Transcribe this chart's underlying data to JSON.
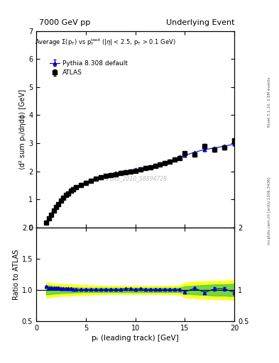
{
  "title_left": "7000 GeV pp",
  "title_right": "Underlying Event",
  "annotation": "Average Σ(pₜ) vs pₜᵉᵃᵈ (|η| < 2.5, pₜ > 0.1 GeV)",
  "watermark": "ATLAS_2010_S8894728",
  "ylabel_main": "⟨d² sum pₜ/dηdϕ⟩ [GeV]",
  "ylabel_ratio": "Ratio to ATLAS",
  "xlabel": "pₜ (leading track) [GeV]",
  "right_label": "mcplots.cern.ch [arXiv:1306.3436]",
  "right_label2": "Rivet 3.1.10, 3.5M events",
  "ylim_main": [
    0,
    7
  ],
  "ylim_ratio": [
    0.5,
    2.0
  ],
  "xlim": [
    0,
    20
  ],
  "legend_atlas": "ATLAS",
  "legend_pythia": "Pythia 8.308 default",
  "atlas_x": [
    1.0,
    1.25,
    1.5,
    1.75,
    2.0,
    2.25,
    2.5,
    2.75,
    3.0,
    3.25,
    3.5,
    3.75,
    4.0,
    4.5,
    5.0,
    5.5,
    6.0,
    6.5,
    7.0,
    7.5,
    8.0,
    8.5,
    9.0,
    9.5,
    10.0,
    10.5,
    11.0,
    11.5,
    12.0,
    12.5,
    13.0,
    13.5,
    14.0,
    14.5,
    15.0,
    16.0,
    17.0,
    18.0,
    19.0,
    20.0
  ],
  "atlas_y": [
    0.18,
    0.32,
    0.46,
    0.6,
    0.72,
    0.84,
    0.96,
    1.06,
    1.15,
    1.22,
    1.3,
    1.36,
    1.43,
    1.52,
    1.6,
    1.67,
    1.73,
    1.78,
    1.83,
    1.87,
    1.9,
    1.94,
    1.97,
    2.0,
    2.03,
    2.07,
    2.11,
    2.15,
    2.19,
    2.24,
    2.29,
    2.35,
    2.41,
    2.48,
    2.64,
    2.6,
    2.9,
    2.78,
    2.85,
    3.1
  ],
  "atlas_yerr": [
    0.01,
    0.01,
    0.01,
    0.01,
    0.01,
    0.01,
    0.01,
    0.01,
    0.01,
    0.01,
    0.01,
    0.01,
    0.01,
    0.01,
    0.01,
    0.01,
    0.01,
    0.01,
    0.01,
    0.01,
    0.01,
    0.01,
    0.01,
    0.01,
    0.01,
    0.01,
    0.01,
    0.01,
    0.01,
    0.01,
    0.02,
    0.02,
    0.02,
    0.02,
    0.05,
    0.05,
    0.07,
    0.07,
    0.07,
    0.07
  ],
  "pythia_x": [
    1.0,
    1.25,
    1.5,
    1.75,
    2.0,
    2.25,
    2.5,
    2.75,
    3.0,
    3.25,
    3.5,
    3.75,
    4.0,
    4.5,
    5.0,
    5.5,
    6.0,
    6.5,
    7.0,
    7.5,
    8.0,
    8.5,
    9.0,
    9.5,
    10.0,
    10.5,
    11.0,
    11.5,
    12.0,
    12.5,
    13.0,
    13.5,
    14.0,
    14.5,
    15.0,
    16.0,
    17.0,
    18.0,
    19.0,
    20.0
  ],
  "pythia_y": [
    0.19,
    0.33,
    0.48,
    0.62,
    0.74,
    0.87,
    0.98,
    1.08,
    1.17,
    1.24,
    1.32,
    1.38,
    1.44,
    1.54,
    1.62,
    1.69,
    1.75,
    1.8,
    1.85,
    1.89,
    1.93,
    1.96,
    2.0,
    2.03,
    2.06,
    2.1,
    2.14,
    2.18,
    2.22,
    2.27,
    2.32,
    2.38,
    2.44,
    2.51,
    2.57,
    2.68,
    2.78,
    2.83,
    2.9,
    2.97
  ],
  "pythia_yerr": [
    0.003,
    0.003,
    0.003,
    0.003,
    0.003,
    0.003,
    0.003,
    0.003,
    0.003,
    0.003,
    0.003,
    0.003,
    0.003,
    0.003,
    0.003,
    0.003,
    0.003,
    0.003,
    0.003,
    0.003,
    0.003,
    0.003,
    0.003,
    0.003,
    0.003,
    0.003,
    0.003,
    0.003,
    0.003,
    0.003,
    0.003,
    0.003,
    0.003,
    0.003,
    0.003,
    0.003,
    0.003,
    0.003,
    0.003,
    0.003
  ],
  "ratio_x": [
    1.0,
    1.25,
    1.5,
    1.75,
    2.0,
    2.25,
    2.5,
    2.75,
    3.0,
    3.25,
    3.5,
    3.75,
    4.0,
    4.5,
    5.0,
    5.5,
    6.0,
    6.5,
    7.0,
    7.5,
    8.0,
    8.5,
    9.0,
    9.5,
    10.0,
    10.5,
    11.0,
    11.5,
    12.0,
    12.5,
    13.0,
    13.5,
    14.0,
    14.5,
    15.0,
    16.0,
    17.0,
    18.0,
    19.0,
    20.0
  ],
  "ratio_y": [
    1.06,
    1.03,
    1.04,
    1.03,
    1.03,
    1.04,
    1.02,
    1.02,
    1.02,
    1.02,
    1.02,
    1.01,
    1.01,
    1.01,
    1.01,
    1.01,
    1.01,
    1.01,
    1.01,
    1.01,
    1.01,
    1.01,
    1.02,
    1.02,
    1.01,
    1.02,
    1.01,
    1.01,
    1.01,
    1.01,
    1.01,
    1.01,
    1.01,
    1.01,
    0.97,
    1.03,
    0.96,
    1.02,
    1.02,
    0.96
  ],
  "ratio_yerr": [
    0.008,
    0.007,
    0.006,
    0.005,
    0.005,
    0.005,
    0.005,
    0.005,
    0.005,
    0.005,
    0.005,
    0.005,
    0.005,
    0.005,
    0.005,
    0.005,
    0.005,
    0.005,
    0.005,
    0.005,
    0.005,
    0.005,
    0.005,
    0.005,
    0.005,
    0.005,
    0.005,
    0.005,
    0.005,
    0.005,
    0.005,
    0.005,
    0.005,
    0.005,
    0.015,
    0.015,
    0.02,
    0.025,
    0.025,
    0.025
  ],
  "band_yellow_lo": [
    0.88,
    0.88,
    0.89,
    0.895,
    0.9,
    0.9,
    0.905,
    0.905,
    0.91,
    0.91,
    0.91,
    0.915,
    0.915,
    0.92,
    0.92,
    0.925,
    0.93,
    0.93,
    0.935,
    0.935,
    0.935,
    0.935,
    0.935,
    0.935,
    0.935,
    0.935,
    0.935,
    0.935,
    0.935,
    0.935,
    0.935,
    0.93,
    0.93,
    0.93,
    0.88,
    0.87,
    0.86,
    0.855,
    0.85,
    0.84
  ],
  "band_yellow_hi": [
    1.12,
    1.12,
    1.11,
    1.105,
    1.1,
    1.1,
    1.095,
    1.095,
    1.09,
    1.09,
    1.09,
    1.085,
    1.085,
    1.08,
    1.08,
    1.075,
    1.07,
    1.07,
    1.065,
    1.065,
    1.065,
    1.065,
    1.065,
    1.065,
    1.065,
    1.065,
    1.065,
    1.065,
    1.065,
    1.065,
    1.065,
    1.07,
    1.07,
    1.07,
    1.12,
    1.13,
    1.14,
    1.145,
    1.15,
    1.16
  ],
  "band_green_lo": [
    0.93,
    0.93,
    0.935,
    0.94,
    0.945,
    0.945,
    0.95,
    0.95,
    0.955,
    0.955,
    0.955,
    0.96,
    0.96,
    0.963,
    0.965,
    0.965,
    0.965,
    0.965,
    0.965,
    0.965,
    0.965,
    0.965,
    0.965,
    0.965,
    0.965,
    0.965,
    0.965,
    0.965,
    0.965,
    0.965,
    0.965,
    0.965,
    0.965,
    0.965,
    0.94,
    0.93,
    0.92,
    0.91,
    0.91,
    0.9
  ],
  "band_green_hi": [
    1.07,
    1.07,
    1.065,
    1.06,
    1.055,
    1.055,
    1.05,
    1.05,
    1.045,
    1.045,
    1.045,
    1.04,
    1.04,
    1.037,
    1.035,
    1.035,
    1.035,
    1.035,
    1.035,
    1.035,
    1.035,
    1.035,
    1.035,
    1.035,
    1.035,
    1.035,
    1.035,
    1.035,
    1.035,
    1.035,
    1.035,
    1.035,
    1.035,
    1.035,
    1.06,
    1.07,
    1.08,
    1.09,
    1.09,
    1.1
  ],
  "data_color": "#000000",
  "pythia_color": "#0000cc",
  "background_color": "#ffffff"
}
